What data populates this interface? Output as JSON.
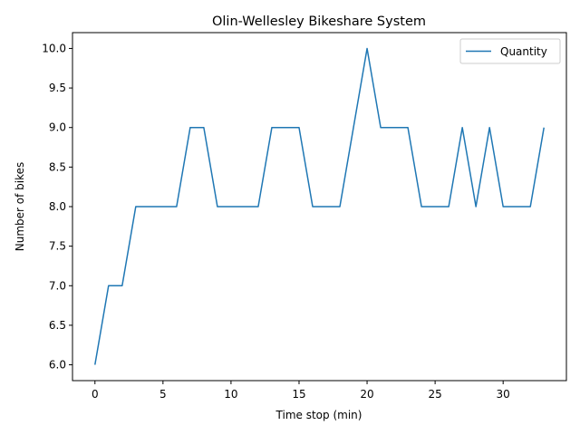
{
  "chart_data": {
    "type": "line",
    "title": "Olin-Wellesley Bikeshare System",
    "xlabel": "Time stop (min)",
    "ylabel": "Number of bikes",
    "xlim": [
      -1.65,
      34.65
    ],
    "ylim": [
      5.8,
      10.2
    ],
    "xticks": [
      0,
      5,
      10,
      15,
      20,
      25,
      30
    ],
    "xtick_labels": [
      "0",
      "5",
      "10",
      "15",
      "20",
      "25",
      "30"
    ],
    "yticks": [
      6.0,
      6.5,
      7.0,
      7.5,
      8.0,
      8.5,
      9.0,
      9.5,
      10.0
    ],
    "ytick_labels": [
      "6.0",
      "6.5",
      "7.0",
      "7.5",
      "8.0",
      "8.5",
      "9.0",
      "9.5",
      "10.0"
    ],
    "grid": false,
    "legend_position": "top-right",
    "series": [
      {
        "name": "Quantity",
        "color": "#1f77b4",
        "x": [
          0,
          1,
          2,
          3,
          4,
          5,
          6,
          7,
          8,
          9,
          10,
          11,
          12,
          13,
          14,
          15,
          16,
          17,
          18,
          19,
          20,
          21,
          22,
          23,
          24,
          25,
          26,
          27,
          28,
          29,
          30,
          31,
          32,
          33
        ],
        "y": [
          6,
          7,
          7,
          8,
          8,
          8,
          8,
          9,
          9,
          8,
          8,
          8,
          8,
          9,
          9,
          9,
          8,
          8,
          8,
          9,
          10,
          9,
          9,
          9,
          8,
          8,
          8,
          9,
          8,
          9,
          8,
          8,
          8,
          9
        ]
      }
    ]
  }
}
